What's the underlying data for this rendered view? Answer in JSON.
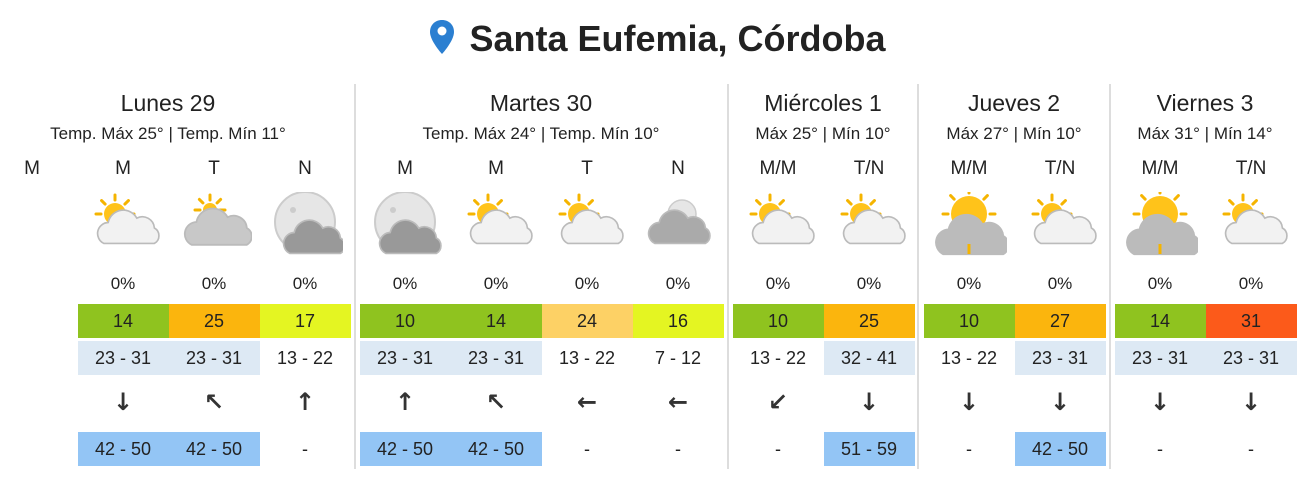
{
  "header": {
    "title": "Santa Eufemia, Córdoba"
  },
  "days": [
    {
      "name": "Lunes 29",
      "summary": "Temp. Máx 25° | Temp. Mín 11°",
      "slots": [
        {
          "period": "M"
        },
        {
          "period": "M",
          "precip": "0%",
          "temp": 14,
          "color": "#8fc31f",
          "wind": "23 - 31",
          "wind_dir": "↓",
          "gusts": "42 - 50"
        },
        {
          "period": "T",
          "precip": "0%",
          "temp": 25,
          "color": "#fbb50d",
          "wind": "23 - 31",
          "wind_dir": "↖",
          "gusts": "42 - 50"
        },
        {
          "period": "N",
          "precip": "0%",
          "temp": 17,
          "color": "#e4f522",
          "wind": "13 - 22",
          "wind_dir": "↑",
          "gusts": "-"
        }
      ]
    },
    {
      "name": "Martes 30",
      "summary": "Temp. Máx 24° | Temp. Mín 10°",
      "slots": [
        {
          "period": "M",
          "precip": "0%",
          "temp": 10,
          "color": "#8fc31f",
          "wind": "23 - 31",
          "wind_dir": "↑",
          "gusts": "42 - 50"
        },
        {
          "period": "M",
          "precip": "0%",
          "temp": 14,
          "color": "#8fc31f",
          "wind": "23 - 31",
          "wind_dir": "↖",
          "gusts": "42 - 50"
        },
        {
          "period": "T",
          "precip": "0%",
          "temp": 24,
          "color": "#fdd165",
          "wind": "13 - 22",
          "wind_dir": "←",
          "gusts": "-"
        },
        {
          "period": "N",
          "precip": "0%",
          "temp": 16,
          "color": "#e4f522",
          "wind": "7 - 12",
          "wind_dir": "←",
          "gusts": "-"
        }
      ]
    },
    {
      "name": "Miércoles 1",
      "summary": "Máx 25° | Mín 10°",
      "slots": [
        {
          "period": "M/M",
          "precip": "0%",
          "temp": 10,
          "color": "#8fc31f",
          "wind": "13 - 22",
          "wind_dir": "↙",
          "gusts": "-"
        },
        {
          "period": "T/N",
          "precip": "0%",
          "temp": 25,
          "color": "#fbb50d",
          "wind": "32 - 41",
          "wind_dir": "↓",
          "gusts": "51 - 59"
        }
      ]
    },
    {
      "name": "Jueves 2",
      "summary": "Máx 27° | Mín 10°",
      "slots": [
        {
          "period": "M/M",
          "precip": "0%",
          "temp": 10,
          "color": "#8fc31f",
          "wind": "13 - 22",
          "wind_dir": "↓",
          "gusts": "-"
        },
        {
          "period": "T/N",
          "precip": "0%",
          "temp": 27,
          "color": "#fbb50d",
          "wind": "23 - 31",
          "wind_dir": "↓",
          "gusts": "42 - 50"
        }
      ]
    },
    {
      "name": "Viernes 3",
      "summary": "Máx 31° | Mín 14°",
      "slots": [
        {
          "period": "M/M",
          "precip": "0%",
          "temp": 14,
          "color": "#8fc31f",
          "wind": "23 - 31",
          "wind_dir": "↓",
          "gusts": "-"
        },
        {
          "period": "T/N",
          "precip": "0%",
          "temp": 31,
          "color": "#fc5a1a",
          "wind": "23 - 31",
          "wind_dir": "↓",
          "gusts": "-"
        }
      ]
    }
  ]
}
